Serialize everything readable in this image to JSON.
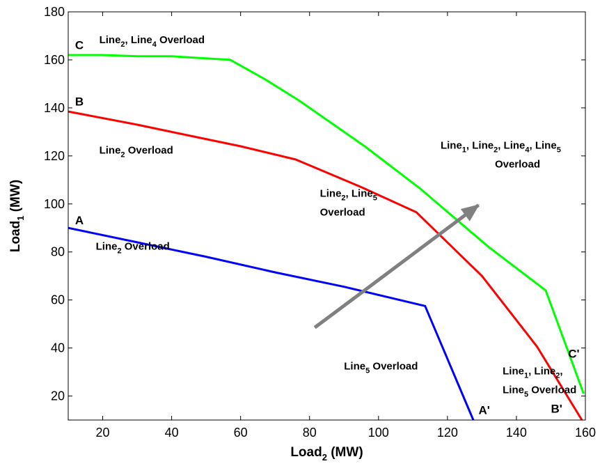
{
  "chart_data": {
    "type": "line",
    "xlabel": {
      "base": "Load",
      "sub": "2",
      "unit": " (MW)"
    },
    "ylabel": {
      "base": "Load",
      "sub": "1",
      "unit": " (MW)"
    },
    "xlim": [
      10,
      160
    ],
    "ylim": [
      10,
      180
    ],
    "xticks": [
      20,
      40,
      60,
      80,
      100,
      120,
      140,
      160
    ],
    "yticks": [
      20,
      40,
      60,
      80,
      100,
      120,
      140,
      160,
      180
    ],
    "grid": false,
    "legend": "none",
    "series": [
      {
        "color": "#0000ff",
        "points": [
          [
            10,
            90
          ],
          [
            30,
            84
          ],
          [
            50,
            78
          ],
          [
            70,
            71.5
          ],
          [
            90,
            65.5
          ],
          [
            113.5,
            57.5
          ],
          [
            127.5,
            10
          ]
        ]
      },
      {
        "color": "#ff0000",
        "points": [
          [
            10,
            138.5
          ],
          [
            30,
            133
          ],
          [
            40,
            130
          ],
          [
            60,
            124
          ],
          [
            76,
            118.5
          ],
          [
            95,
            107
          ],
          [
            111,
            96.5
          ],
          [
            130,
            70
          ],
          [
            146,
            40.5
          ],
          [
            159,
            10
          ]
        ]
      },
      {
        "color": "#00ff00",
        "points": [
          [
            10,
            162
          ],
          [
            20,
            162
          ],
          [
            30,
            161.5
          ],
          [
            40,
            161.5
          ],
          [
            57,
            160
          ],
          [
            67,
            152
          ],
          [
            77,
            143
          ],
          [
            96,
            124
          ],
          [
            112,
            106.5
          ],
          [
            132,
            82
          ],
          [
            148.5,
            64
          ],
          [
            159.5,
            21
          ]
        ]
      }
    ],
    "arrow": {
      "color": "#808080",
      "from": [
        81.5,
        48.5
      ],
      "to": [
        129,
        99.5
      ]
    },
    "point_labels": [
      {
        "id": "a",
        "text": "A",
        "x": 12,
        "y": 91.5
      },
      {
        "id": "b",
        "text": "B",
        "x": 12,
        "y": 141
      },
      {
        "id": "c",
        "text": "C",
        "x": 12,
        "y": 164.5
      },
      {
        "id": "a-prime",
        "text": "A'",
        "x": 129,
        "y": 12.5
      },
      {
        "id": "b-prime",
        "text": "B'",
        "x": 150,
        "y": 13
      },
      {
        "id": "c-prime",
        "text": "C'",
        "x": 155,
        "y": 36
      }
    ],
    "annotations": [
      {
        "id": "line2-overload-low",
        "x": 18,
        "y": 81,
        "lines": [
          [
            [
              "Line"
            ],
            [
              "2",
              "sub"
            ],
            [
              " Overload"
            ]
          ]
        ]
      },
      {
        "id": "line2-overload-mid",
        "x": 19,
        "y": 121,
        "lines": [
          [
            [
              "Line"
            ],
            [
              "2",
              "sub"
            ],
            [
              " Overload"
            ]
          ]
        ]
      },
      {
        "id": "line2-line4-overload",
        "x": 19,
        "y": 167,
        "lines": [
          [
            [
              "Line"
            ],
            [
              "2",
              "sub"
            ],
            [
              ", Line"
            ],
            [
              "4",
              "sub"
            ],
            [
              " Overload"
            ]
          ]
        ]
      },
      {
        "id": "line2-line5-overload",
        "x": 83,
        "y": 103,
        "lines": [
          [
            [
              "Line"
            ],
            [
              "2",
              "sub"
            ],
            [
              ", Line"
            ],
            [
              "5",
              "sub"
            ]
          ],
          [
            [
              "Overload"
            ]
          ]
        ]
      },
      {
        "id": "line1-2-4-5-overload",
        "x": 118,
        "y": 123,
        "lines": [
          [
            [
              "Line"
            ],
            [
              "1",
              "sub"
            ],
            [
              ", Line"
            ],
            [
              "2",
              "sub"
            ],
            [
              ", Line"
            ],
            [
              "4",
              "sub"
            ],
            [
              ", Line"
            ],
            [
              "5",
              "sub"
            ]
          ],
          [
            [
              "Overload",
              "indent"
            ]
          ]
        ]
      },
      {
        "id": "line5-overload",
        "x": 90,
        "y": 31,
        "lines": [
          [
            [
              "Line"
            ],
            [
              "5",
              "sub"
            ],
            [
              " Overload"
            ]
          ]
        ]
      },
      {
        "id": "line1-2-5-overload",
        "x": 136,
        "y": 29,
        "lines": [
          [
            [
              "Line"
            ],
            [
              "1",
              "sub"
            ],
            [
              ", Line"
            ],
            [
              "2",
              "sub"
            ],
            [
              ","
            ]
          ],
          [
            [
              "Line"
            ],
            [
              "5",
              "sub"
            ],
            [
              " Overload"
            ]
          ]
        ]
      }
    ]
  }
}
